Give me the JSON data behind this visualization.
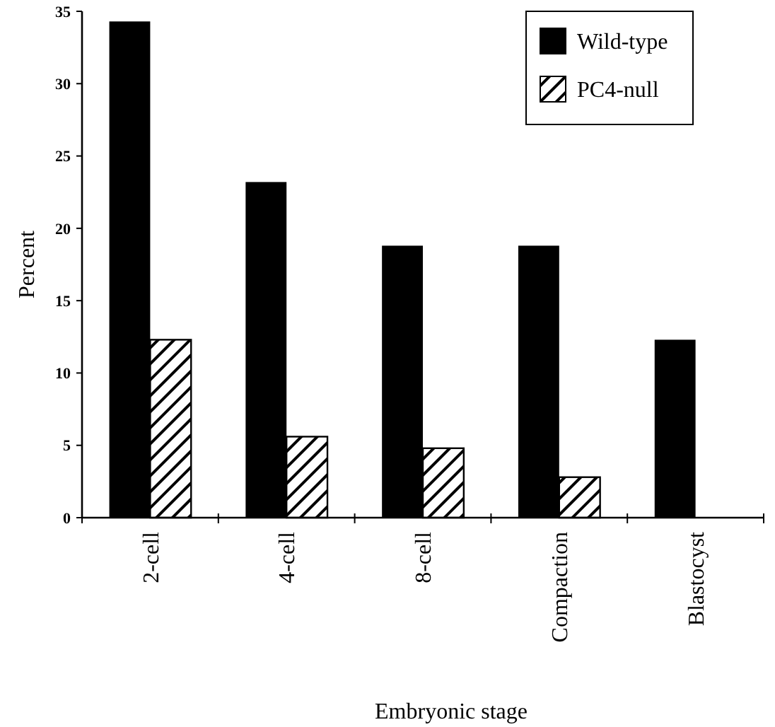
{
  "chart_data": {
    "type": "bar",
    "xlabel": "Embryonic stage",
    "ylabel": "Percent",
    "categories": [
      "2-cell",
      "4-cell",
      "8-cell",
      "Compaction",
      "Blastocyst"
    ],
    "series": [
      {
        "name": "Wild-type",
        "color": "#000000",
        "values": [
          34.3,
          23.2,
          18.8,
          18.8,
          12.3
        ]
      },
      {
        "name": "PC4-null",
        "color": "#000000",
        "values": [
          12.3,
          5.6,
          4.8,
          2.8,
          0
        ]
      }
    ],
    "ylim": [
      0,
      35
    ],
    "yticks": [
      0,
      5,
      10,
      15,
      20,
      25,
      30,
      35
    ],
    "grid": false,
    "legend": "top right"
  }
}
